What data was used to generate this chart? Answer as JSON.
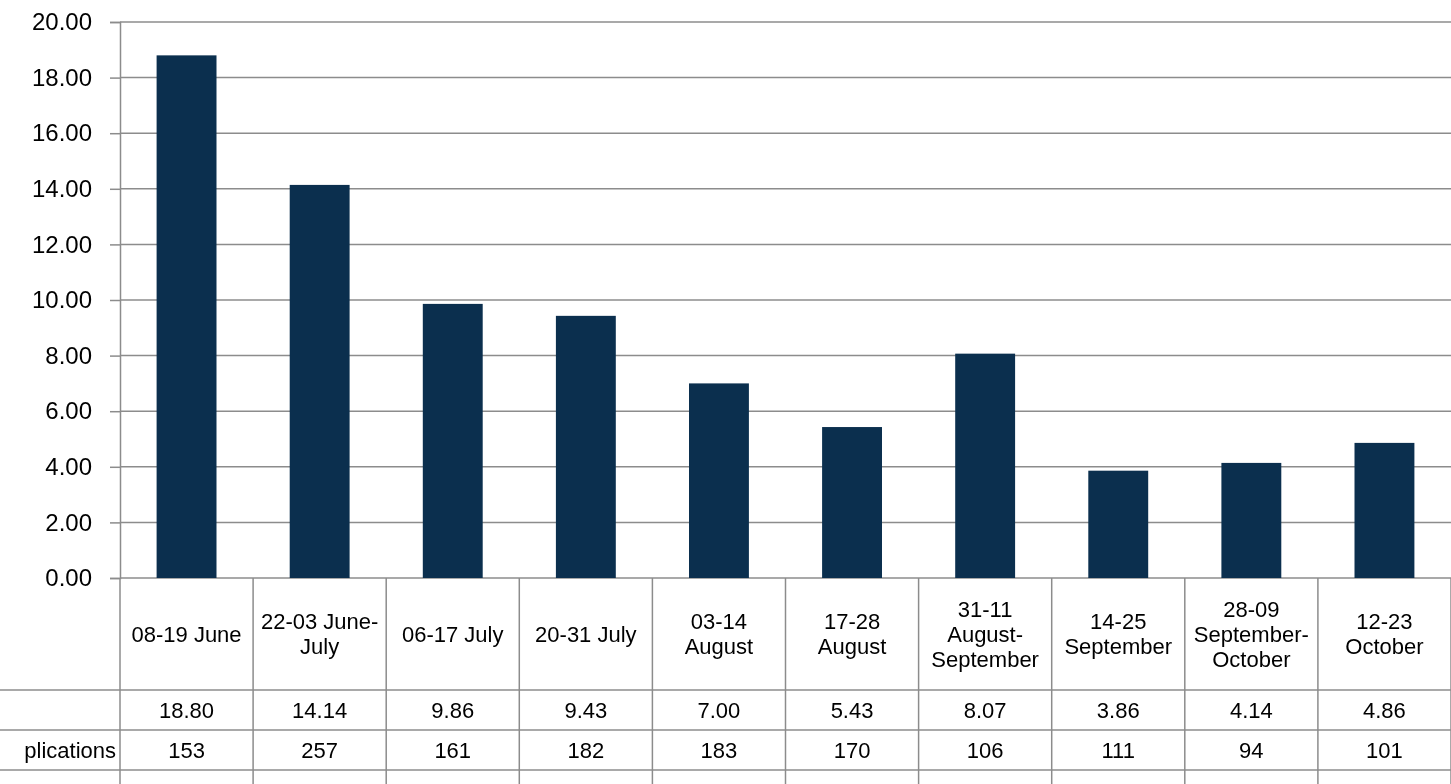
{
  "chart_data": {
    "type": "bar",
    "categories": [
      "08-19 June",
      "22-03 June-July",
      "06-17 July",
      "20-31 July",
      "03-14 August",
      "17-28 August",
      "31-11 August-September",
      "14-25 September",
      "28-09 September-October",
      "12-23 October"
    ],
    "values": [
      18.8,
      14.14,
      9.86,
      9.43,
      7.0,
      5.43,
      8.07,
      3.86,
      4.14,
      4.86
    ],
    "color": "#0b2f4e",
    "ylim": [
      0,
      20
    ],
    "yticks": [
      {
        "value": 0,
        "label": "0.00"
      },
      {
        "value": 2,
        "label": "2.00"
      },
      {
        "value": 4,
        "label": "4.00"
      },
      {
        "value": 6,
        "label": "6.00"
      },
      {
        "value": 8,
        "label": "8.00"
      },
      {
        "value": 10,
        "label": "10.00"
      },
      {
        "value": 12,
        "label": "12.00"
      },
      {
        "value": 14,
        "label": "14.00"
      },
      {
        "value": 16,
        "label": "16.00"
      },
      {
        "value": 18,
        "label": "18.00"
      },
      {
        "value": 20,
        "label": "20.00"
      }
    ],
    "grid": "y",
    "annotations": [
      "18.80",
      "14.14",
      "9.86",
      "9.43",
      "7.00",
      "5.43",
      "8.07",
      "3.86",
      "4.14",
      "4.86",
      "plications",
      "153",
      "257",
      "161",
      "182",
      "183",
      "170",
      "106",
      "111",
      "94",
      "101"
    ]
  }
}
